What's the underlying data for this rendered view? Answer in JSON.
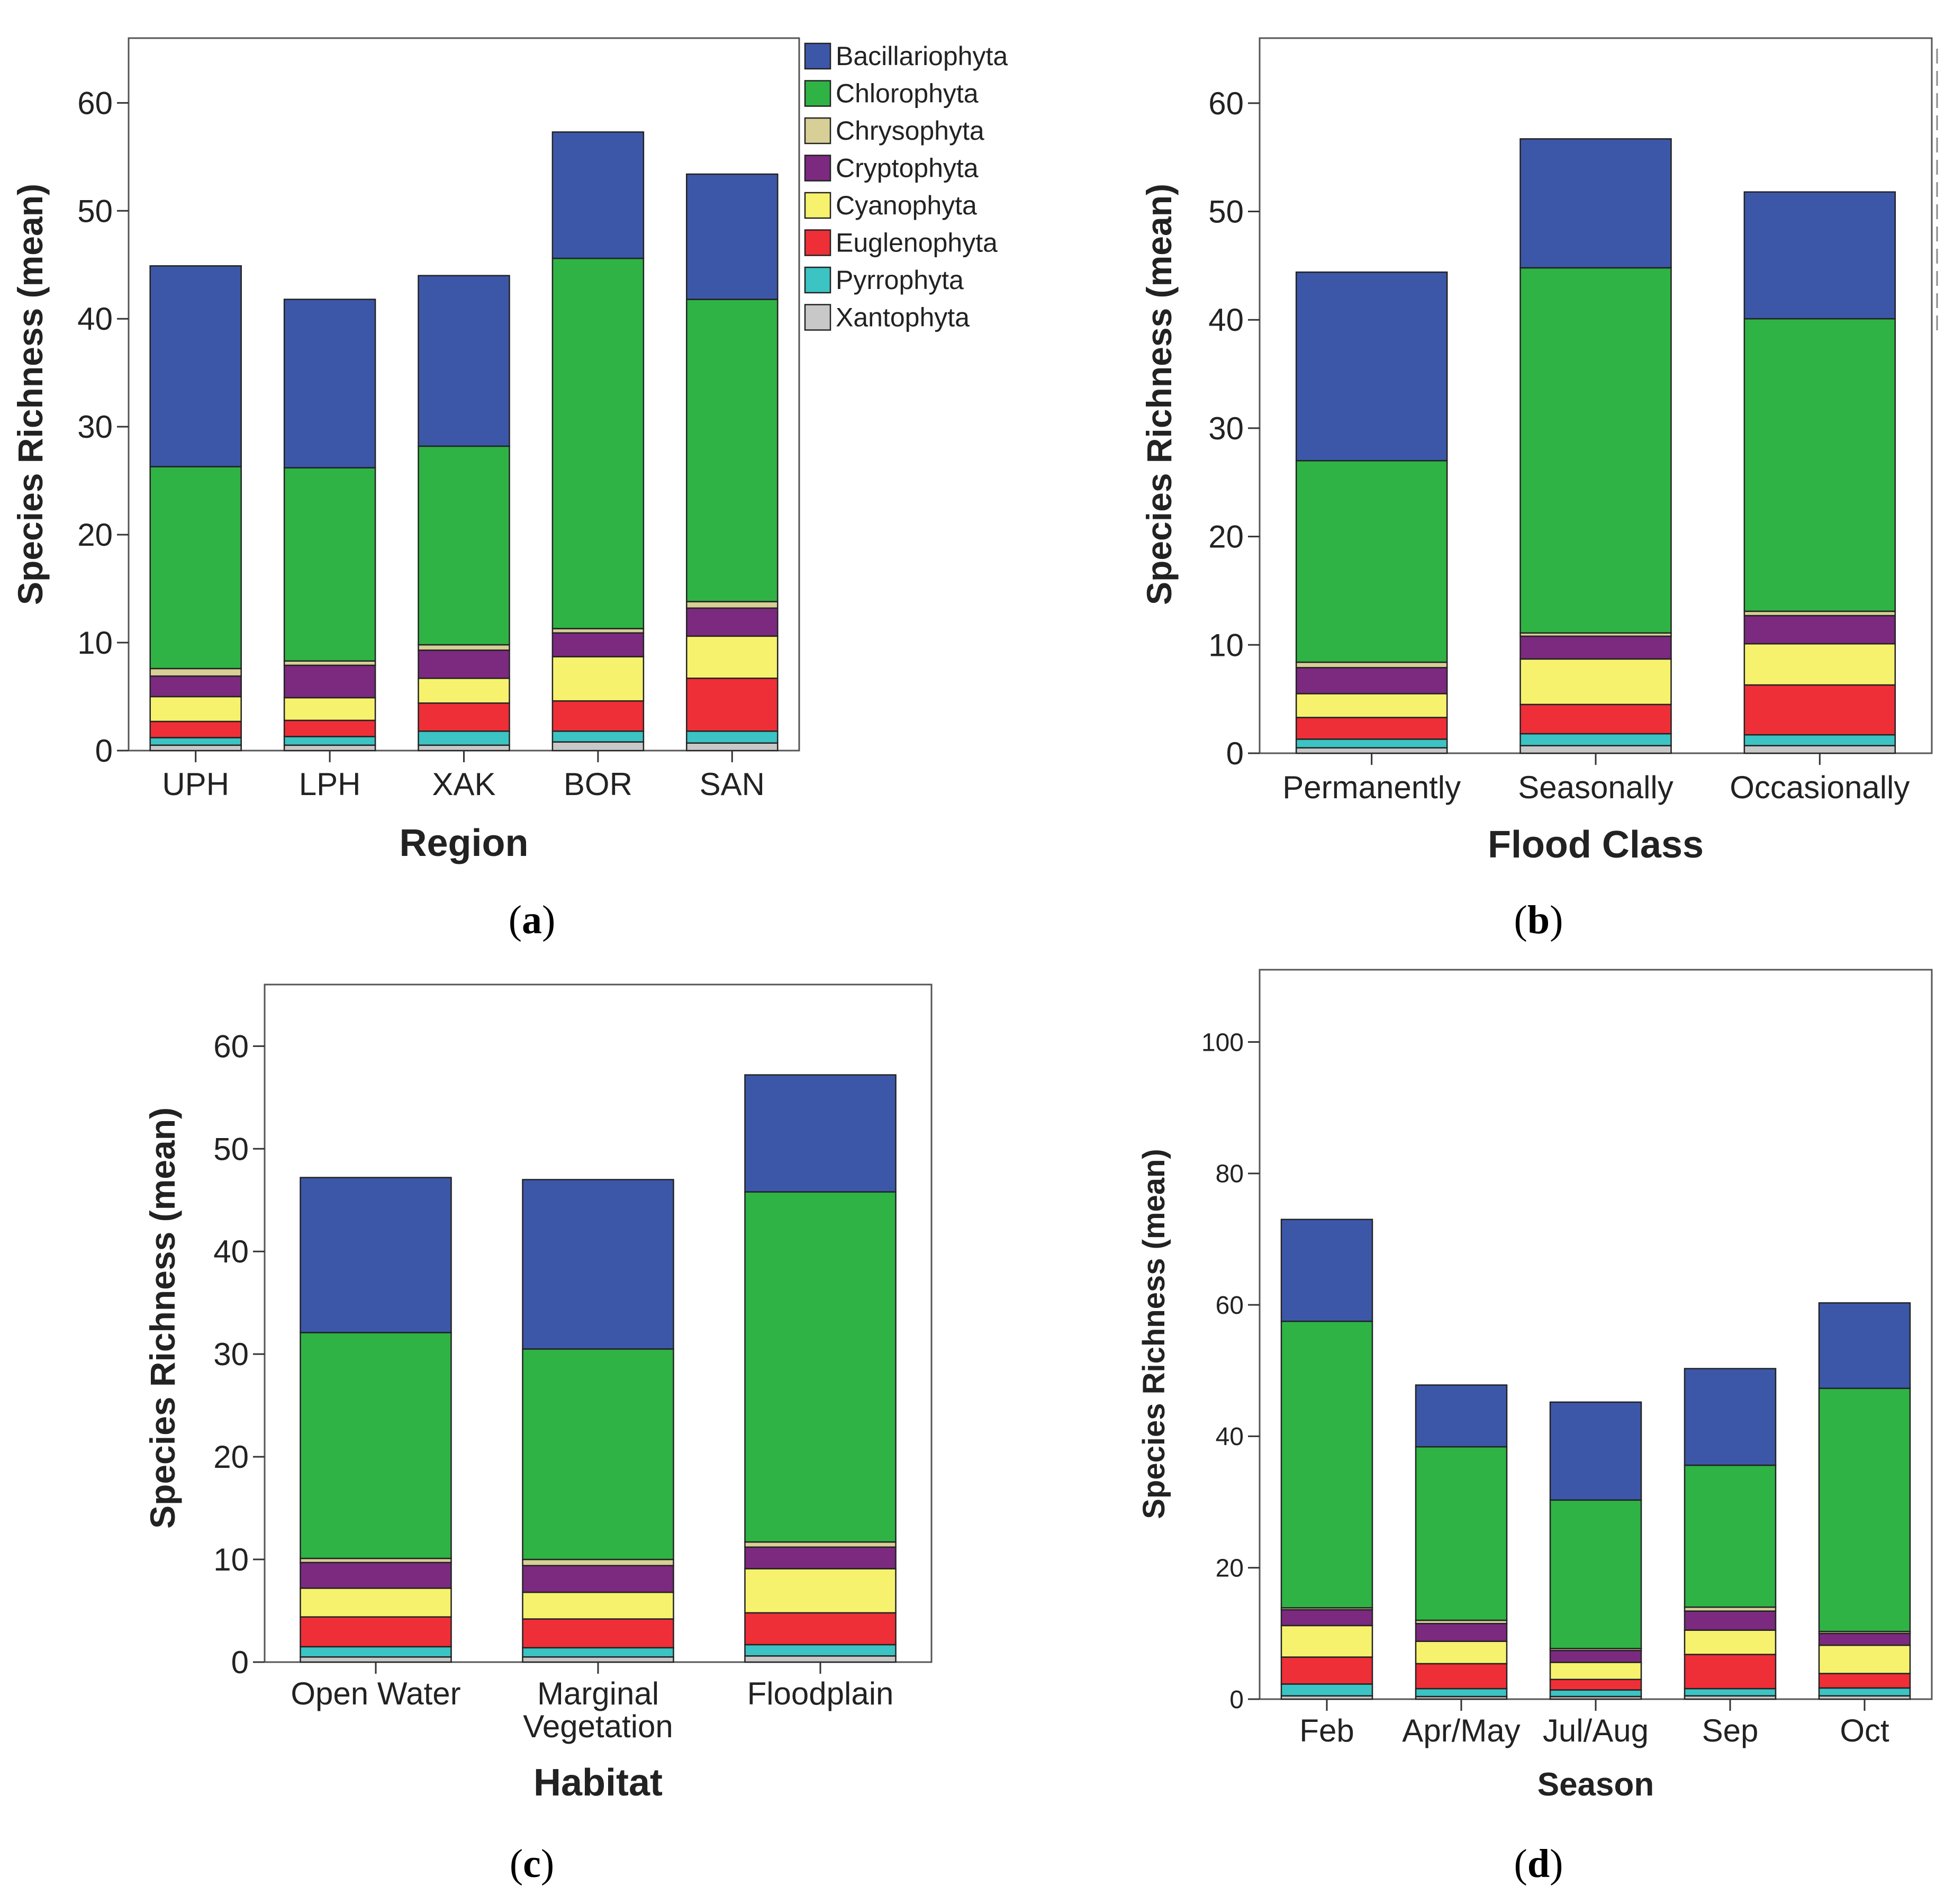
{
  "legend": [
    {
      "name": "Bacillariophyta",
      "color": "#3d57a8"
    },
    {
      "name": "Chlorophyta",
      "color": "#2fb345"
    },
    {
      "name": "Chrysophyta",
      "color": "#d8cf96"
    },
    {
      "name": "Cryptophyta",
      "color": "#7b2a80"
    },
    {
      "name": "Cyanophyta",
      "color": "#f7f26e"
    },
    {
      "name": "Euglenophyta",
      "color": "#ef2f37"
    },
    {
      "name": "Pyrrophyta",
      "color": "#3cc3c3"
    },
    {
      "name": "Xantophyta",
      "color": "#c8c8c8"
    }
  ],
  "chart_data": [
    {
      "panel": "(a)",
      "caption_letter": "a",
      "type": "bar",
      "stacked": true,
      "xlabel": "Region",
      "ylabel": "Species Richness (mean)",
      "ylim": [
        0,
        66
      ],
      "yticks": [
        0,
        10,
        20,
        30,
        40,
        50,
        60
      ],
      "categories": [
        "UPH",
        "LPH",
        "XAK",
        "BOR",
        "SAN"
      ],
      "series": [
        {
          "name": "Xantophyta",
          "values": [
            0.5,
            0.5,
            0.5,
            0.8,
            0.7
          ]
        },
        {
          "name": "Pyrrophyta",
          "values": [
            0.7,
            0.8,
            1.3,
            1.0,
            1.1
          ]
        },
        {
          "name": "Euglenophyta",
          "values": [
            1.5,
            1.5,
            2.6,
            2.8,
            4.9
          ]
        },
        {
          "name": "Cyanophyta",
          "values": [
            2.3,
            2.1,
            2.3,
            4.1,
            3.9
          ]
        },
        {
          "name": "Cryptophyta",
          "values": [
            1.9,
            3.0,
            2.6,
            2.2,
            2.6
          ]
        },
        {
          "name": "Chrysophyta",
          "values": [
            0.7,
            0.4,
            0.5,
            0.4,
            0.6
          ]
        },
        {
          "name": "Chlorophyta",
          "values": [
            18.7,
            17.9,
            18.4,
            34.3,
            28.0
          ]
        },
        {
          "name": "Bacillariophyta",
          "values": [
            18.6,
            15.6,
            15.8,
            11.7,
            11.6
          ]
        }
      ]
    },
    {
      "panel": "(b)",
      "caption_letter": "b",
      "type": "bar",
      "stacked": true,
      "xlabel": "Flood Class",
      "ylabel": "Species Richness (mean)",
      "ylim": [
        0,
        66
      ],
      "yticks": [
        0,
        10,
        20,
        30,
        40,
        50,
        60
      ],
      "categories": [
        "Permanently",
        "Seasonally",
        "Occasionally"
      ],
      "series": [
        {
          "name": "Xantophyta",
          "values": [
            0.5,
            0.7,
            0.7
          ]
        },
        {
          "name": "Pyrrophyta",
          "values": [
            0.8,
            1.1,
            1.0
          ]
        },
        {
          "name": "Euglenophyta",
          "values": [
            2.0,
            2.7,
            4.6
          ]
        },
        {
          "name": "Cyanophyta",
          "values": [
            2.2,
            4.2,
            3.8
          ]
        },
        {
          "name": "Cryptophyta",
          "values": [
            2.4,
            2.1,
            2.6
          ]
        },
        {
          "name": "Chrysophyta",
          "values": [
            0.5,
            0.3,
            0.4
          ]
        },
        {
          "name": "Chlorophyta",
          "values": [
            18.6,
            33.7,
            27.0
          ]
        },
        {
          "name": "Bacillariophyta",
          "values": [
            17.4,
            11.9,
            11.7
          ]
        }
      ]
    },
    {
      "panel": "(c)",
      "caption_letter": "c",
      "type": "bar",
      "stacked": true,
      "xlabel": "Habitat",
      "ylabel": "Species Richness (mean)",
      "ylim": [
        0,
        66
      ],
      "yticks": [
        0,
        10,
        20,
        30,
        40,
        50,
        60
      ],
      "categories": [
        "Open Water",
        "Marginal Vegetation",
        "Floodplain"
      ],
      "series": [
        {
          "name": "Xantophyta",
          "values": [
            0.5,
            0.5,
            0.6
          ]
        },
        {
          "name": "Pyrrophyta",
          "values": [
            1.0,
            0.9,
            1.1
          ]
        },
        {
          "name": "Euglenophyta",
          "values": [
            2.9,
            2.8,
            3.1
          ]
        },
        {
          "name": "Cyanophyta",
          "values": [
            2.8,
            2.6,
            4.3
          ]
        },
        {
          "name": "Cryptophyta",
          "values": [
            2.5,
            2.6,
            2.1
          ]
        },
        {
          "name": "Chrysophyta",
          "values": [
            0.4,
            0.6,
            0.5
          ]
        },
        {
          "name": "Chlorophyta",
          "values": [
            22.0,
            20.5,
            34.1
          ]
        },
        {
          "name": "Bacillariophyta",
          "values": [
            15.1,
            16.5,
            11.4
          ]
        }
      ]
    },
    {
      "panel": "(d)",
      "caption_letter": "d",
      "type": "bar",
      "stacked": true,
      "xlabel": "Season",
      "ylabel": "Species Richness (mean)",
      "ylim": [
        0,
        111
      ],
      "yticks": [
        0,
        20,
        40,
        60,
        80,
        100
      ],
      "categories": [
        "Feb",
        "Apr/May",
        "Jul/Aug",
        "Sep",
        "Oct"
      ],
      "series": [
        {
          "name": "Xantophyta",
          "values": [
            0.5,
            0.4,
            0.4,
            0.5,
            0.5
          ]
        },
        {
          "name": "Pyrrophyta",
          "values": [
            1.8,
            1.2,
            1.0,
            1.1,
            1.2
          ]
        },
        {
          "name": "Euglenophyta",
          "values": [
            4.1,
            3.8,
            1.6,
            5.2,
            2.2
          ]
        },
        {
          "name": "Cyanophyta",
          "values": [
            4.8,
            3.4,
            2.6,
            3.7,
            4.3
          ]
        },
        {
          "name": "Cryptophyta",
          "values": [
            2.4,
            2.7,
            1.8,
            2.9,
            1.8
          ]
        },
        {
          "name": "Chrysophyta",
          "values": [
            0.3,
            0.5,
            0.3,
            0.6,
            0.3
          ]
        },
        {
          "name": "Chlorophyta",
          "values": [
            43.6,
            26.4,
            22.6,
            21.6,
            37.0
          ]
        },
        {
          "name": "Bacillariophyta",
          "values": [
            15.5,
            9.4,
            14.9,
            14.7,
            13.0
          ]
        }
      ]
    }
  ]
}
